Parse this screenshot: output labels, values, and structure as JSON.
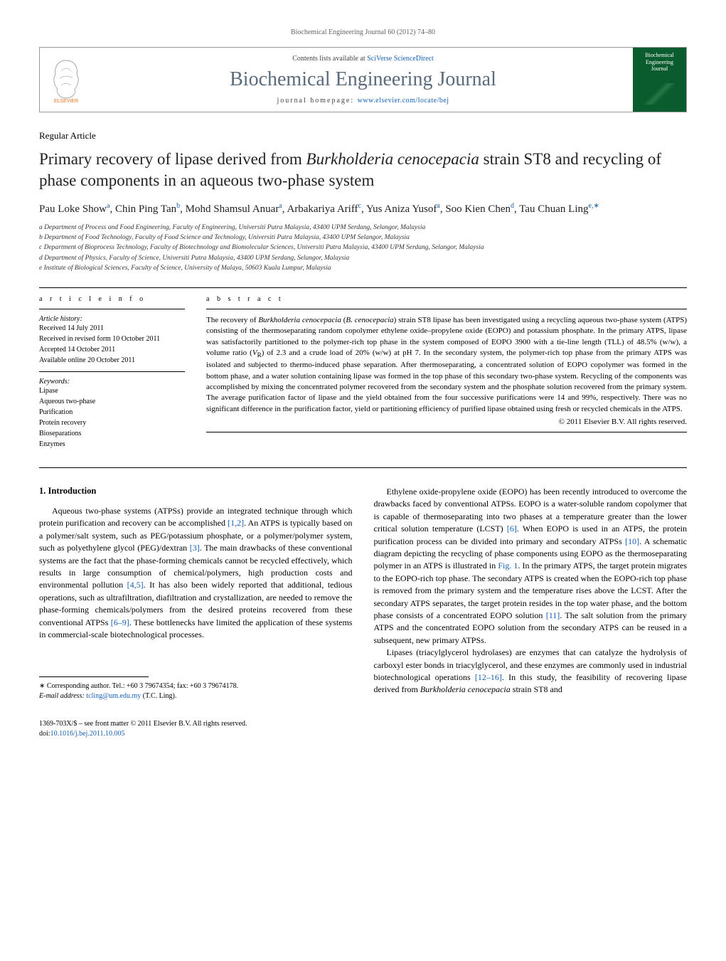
{
  "journal_header_line": "Biochemical Engineering Journal 60 (2012) 74–80",
  "header": {
    "contents_prefix": "Contents lists available at ",
    "contents_link": "SciVerse ScienceDirect",
    "journal_name": "Biochemical Engineering Journal",
    "homepage_prefix": "journal homepage: ",
    "homepage_link": "www.elsevier.com/locate/bej",
    "cover_lines": [
      "Biochemical",
      "Engineering",
      "Journal"
    ]
  },
  "article_type": "Regular Article",
  "title_html": "Primary recovery of lipase derived from <em>Burkholderia cenocepacia</em> strain ST8 and recycling of phase components in an aqueous two-phase system",
  "authors_html": "Pau Loke Show<sup>a</sup>, Chin Ping Tan<sup>b</sup>, Mohd Shamsul Anuar<sup>a</sup>, Arbakariya Ariff<sup>c</sup>, Yus Aniza Yusof<sup>a</sup>, Soo Kien Chen<sup>d</sup>, Tau Chuan Ling<sup>e,∗</sup>",
  "affiliations": [
    "a Department of Process and Food Engineering, Faculty of Engineering, Universiti Putra Malaysia, 43400 UPM Serdang, Selangor, Malaysia",
    "b Department of Food Technology, Faculty of Food Science and Technology, Universiti Putra Malaysia, 43400 UPM Selangor, Malaysia",
    "c Department of Bioprocess Technology, Faculty of Biotechnology and Biomolecular Sciences, Universiti Putra Malaysia, 43400 UPM Serdang, Selangor, Malaysia",
    "d Department of Physics, Faculty of Science, Universiti Putra Malaysia, 43400 UPM Serdang, Selangor, Malaysia",
    "e Institute of Biological Sciences, Faculty of Science, University of Malaya, 50603 Kuala Lumpur, Malaysia"
  ],
  "article_info": {
    "heading": "a r t i c l e   i n f o",
    "history_label": "Article history:",
    "history": [
      "Received 14 July 2011",
      "Received in revised form 10 October 2011",
      "Accepted 14 October 2011",
      "Available online 20 October 2011"
    ],
    "keywords_label": "Keywords:",
    "keywords": [
      "Lipase",
      "Aqueous two-phase",
      "Purification",
      "Protein recovery",
      "Bioseparations",
      "Enzymes"
    ]
  },
  "abstract": {
    "heading": "a b s t r a c t",
    "text_html": "The recovery of <em>Burkholderia cenocepacia</em> (<em>B. cenocepacia</em>) strain ST8 lipase has been investigated using a recycling aqueous two-phase system (ATPS) consisting of the thermoseparating random copolymer ethylene oxide–propylene oxide (EOPO) and potassium phosphate. In the primary ATPS, lipase was satisfactorily partitioned to the polymer-rich top phase in the system composed of EOPO 3900 with a tie-line length (TLL) of 48.5% (w/w), a volume ratio (<em>V</em><sub>R</sub>) of 2.3 and a crude load of 20% (w/w) at pH 7. In the secondary system, the polymer-rich top phase from the primary ATPS was isolated and subjected to thermo-induced phase separation. After thermoseparating, a concentrated solution of EOPO copolymer was formed in the bottom phase, and a water solution containing lipase was formed in the top phase of this secondary two-phase system. Recycling of the components was accomplished by mixing the concentrated polymer recovered from the secondary system and the phosphate solution recovered from the primary system. The average purification factor of lipase and the yield obtained from the four successive purifications were 14 and 99%, respectively. There was no significant difference in the purification factor, yield or partitioning efficiency of purified lipase obtained using fresh or recycled chemicals in the ATPS.",
    "copyright": "© 2011 Elsevier B.V. All rights reserved."
  },
  "body": {
    "section_heading": "1. Introduction",
    "left_html": "<p>Aqueous two-phase systems (ATPSs) provide an integrated technique through which protein purification and recovery can be accomplished <a href=\"#\">[1,2]</a>. An ATPS is typically based on a polymer/salt system, such as PEG/potassium phosphate, or a polymer/polymer system, such as polyethylene glycol (PEG)/dextran <a href=\"#\">[3]</a>. The main drawbacks of these conventional systems are the fact that the phase-forming chemicals cannot be recycled effectively, which results in large consumption of chemical/polymers, high production costs and environmental pollution <a href=\"#\">[4,5]</a>. It has also been widely reported that additional, tedious operations, such as ultrafiltration, diafiltration and crystallization, are needed to remove the phase-forming chemicals/polymers from the desired proteins recovered from these conventional ATPSs <a href=\"#\">[6–9]</a>. These bottlenecks have limited the application of these systems in commercial-scale biotechnological processes.</p>",
    "right_html": "<p>Ethylene oxide-propylene oxide (EOPO) has been recently introduced to overcome the drawbacks faced by conventional ATPSs. EOPO is a water-soluble random copolymer that is capable of thermoseparating into two phases at a temperature greater than the lower critical solution temperature (LCST) <a href=\"#\">[6]</a>. When EOPO is used in an ATPS, the protein purification process can be divided into primary and secondary ATPSs <a href=\"#\">[10]</a>. A schematic diagram depicting the recycling of phase components using EOPO as the thermoseparating polymer in an ATPS is illustrated in <a href=\"#\">Fig. 1</a>. In the primary ATPS, the target protein migrates to the EOPO-rich top phase. The secondary ATPS is created when the EOPO-rich top phase is removed from the primary system and the temperature rises above the LCST. After the secondary ATPS separates, the target protein resides in the top water phase, and the bottom phase consists of a concentrated EOPO solution <a href=\"#\">[11]</a>. The salt solution from the primary ATPS and the concentrated EOPO solution from the secondary ATPS can be reused in a subsequent, new primary ATPSs.</p><p>Lipases (triacylglycerol hydrolases) are enzymes that can catalyze the hydrolysis of carboxyl ester bonds in triacylglycerol, and these enzymes are commonly used in industrial biotechnological operations <a href=\"#\">[12–16]</a>. In this study, the feasibility of recovering lipase derived from <em>Burkholderia cenocepacia</em> strain ST8 and</p>"
  },
  "footnote": {
    "corr_html": "∗ Corresponding author. Tel.: +60 3 79674354; fax: +60 3 79674178.",
    "email_label": "E-mail address:",
    "email": "tcling@um.edu.my",
    "email_who": "(T.C. Ling)."
  },
  "bottom": {
    "line1": "1369-703X/$ – see front matter © 2011 Elsevier B.V. All rights reserved.",
    "doi_prefix": "doi:",
    "doi": "10.1016/j.bej.2011.10.005"
  },
  "colors": {
    "link": "#1560b3",
    "journal_title": "#5b6b7b",
    "cover_bg": "#0a5c2e",
    "elsevier_orange": "#e9711c"
  }
}
